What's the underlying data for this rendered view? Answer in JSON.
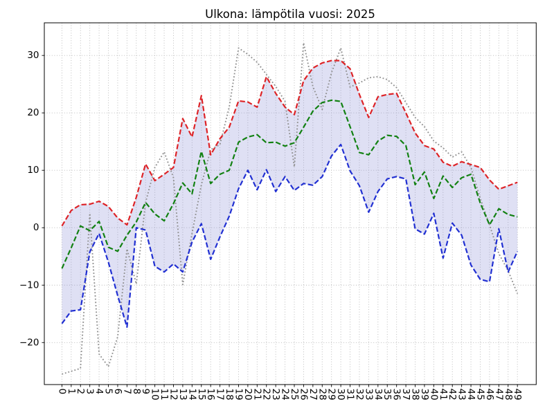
{
  "chart_data": {
    "type": "line",
    "title": "Ulkona: lämpötila vuosi: 2025",
    "xlabel": "",
    "ylabel": "",
    "x": [
      0,
      1,
      2,
      3,
      4,
      5,
      6,
      7,
      8,
      9,
      10,
      11,
      12,
      13,
      14,
      15,
      16,
      17,
      18,
      19,
      20,
      21,
      22,
      23,
      24,
      25,
      26,
      27,
      28,
      29,
      30,
      31,
      32,
      33,
      34,
      35,
      36,
      37,
      38,
      39,
      40,
      41,
      42,
      43,
      44,
      45,
      46,
      47,
      48,
      49
    ],
    "x_tick_labels": [
      "0",
      "1",
      "2",
      "3",
      "4",
      "5",
      "6",
      "7",
      "8",
      "9",
      "10",
      "11",
      "12",
      "13",
      "14",
      "15",
      "16",
      "17",
      "18",
      "19",
      "20",
      "21",
      "22",
      "23",
      "24",
      "25",
      "26",
      "27",
      "28",
      "29",
      "30",
      "31",
      "32",
      "33",
      "34",
      "35",
      "36",
      "37",
      "38",
      "39",
      "40",
      "41",
      "42",
      "43",
      "44",
      "45",
      "46",
      "47",
      "48",
      "49"
    ],
    "y_ticks": [
      30,
      20,
      10,
      0,
      -10,
      -20
    ],
    "y_tick_labels": [
      "30",
      "20",
      "10",
      "0",
      "−10",
      "−20"
    ],
    "ylim": [
      -27.3,
      35.7
    ],
    "grid": true,
    "grid_color": "#b5b5b5",
    "axis_color": "#000000",
    "background": "#ffffff",
    "legend": "none",
    "series": [
      {
        "name": "red-dashed-upper",
        "color": "#dd2327",
        "style": "dashed",
        "values": [
          0.3,
          3.0,
          4.0,
          4.1,
          4.6,
          3.7,
          1.7,
          0.5,
          5.3,
          11.1,
          8.2,
          9.3,
          10.5,
          19.0,
          15.8,
          23.0,
          12.7,
          15.5,
          17.5,
          22.1,
          21.9,
          21.0,
          26.3,
          23.4,
          21.0,
          19.7,
          25.6,
          27.8,
          28.7,
          29.1,
          29.1,
          27.7,
          23.2,
          19.2,
          22.8,
          23.2,
          23.4,
          20.0,
          16.5,
          14.3,
          13.7,
          11.4,
          10.7,
          11.5,
          11.0,
          10.5,
          8.3,
          6.7,
          7.3,
          7.9
        ]
      },
      {
        "name": "green-dashed-middle",
        "color": "#128112",
        "style": "dashed",
        "values": [
          -7.1,
          -3.5,
          0.3,
          -0.5,
          1.1,
          -3.4,
          -4.1,
          -1.3,
          1.0,
          4.4,
          2.4,
          1.2,
          4.2,
          7.8,
          5.9,
          13.3,
          7.7,
          9.3,
          10.0,
          14.9,
          15.8,
          16.2,
          14.8,
          14.9,
          14.2,
          14.8,
          17.5,
          20.3,
          21.8,
          22.2,
          22.0,
          17.6,
          13.1,
          12.7,
          15.1,
          16.1,
          15.9,
          14.3,
          7.5,
          9.7,
          5.1,
          9.0,
          7.0,
          8.7,
          9.3,
          4.3,
          0.5,
          3.3,
          2.3,
          1.9
        ]
      },
      {
        "name": "blue-dashed-lower",
        "color": "#2130d2",
        "style": "dashed",
        "values": [
          -16.7,
          -14.5,
          -14.3,
          -4.2,
          -1.0,
          -6.0,
          -11.8,
          -17.3,
          0.0,
          -0.4,
          -6.7,
          -7.7,
          -6.3,
          -7.7,
          -2.5,
          0.7,
          -5.5,
          -1.6,
          2.0,
          6.8,
          10.0,
          6.6,
          10.1,
          6.3,
          8.9,
          6.5,
          7.7,
          7.4,
          8.9,
          12.5,
          14.5,
          9.9,
          7.3,
          2.7,
          6.3,
          8.5,
          8.9,
          8.5,
          -0.2,
          -1.1,
          2.5,
          -5.3,
          0.8,
          -1.3,
          -6.5,
          -9.0,
          -9.4,
          -0.2,
          -7.7,
          -4.1
        ]
      },
      {
        "name": "gray-dotted-reference",
        "color": "#8f8f8f",
        "style": "dotted",
        "values": [
          -25.5,
          -25.0,
          -24.5,
          2.5,
          -22.0,
          -24.2,
          -19.0,
          -3.7,
          -9.8,
          4.4,
          10.5,
          13.2,
          8.7,
          -9.9,
          -1.0,
          7.5,
          13.6,
          14.5,
          21.0,
          31.3,
          30.2,
          28.8,
          26.7,
          24.6,
          22.0,
          10.6,
          32.2,
          24.6,
          20.6,
          27.0,
          31.3,
          24.5,
          25.2,
          26.1,
          26.3,
          25.8,
          24.4,
          21.8,
          19.2,
          17.6,
          15.1,
          13.9,
          12.3,
          13.2,
          10.5,
          5.1,
          0.5,
          -4.5,
          -7.5,
          -11.5
        ]
      }
    ],
    "fill_between": {
      "upper": "red-dashed-upper",
      "lower": "blue-dashed-lower",
      "color": "rgba(138,142,214,0.27)"
    }
  }
}
